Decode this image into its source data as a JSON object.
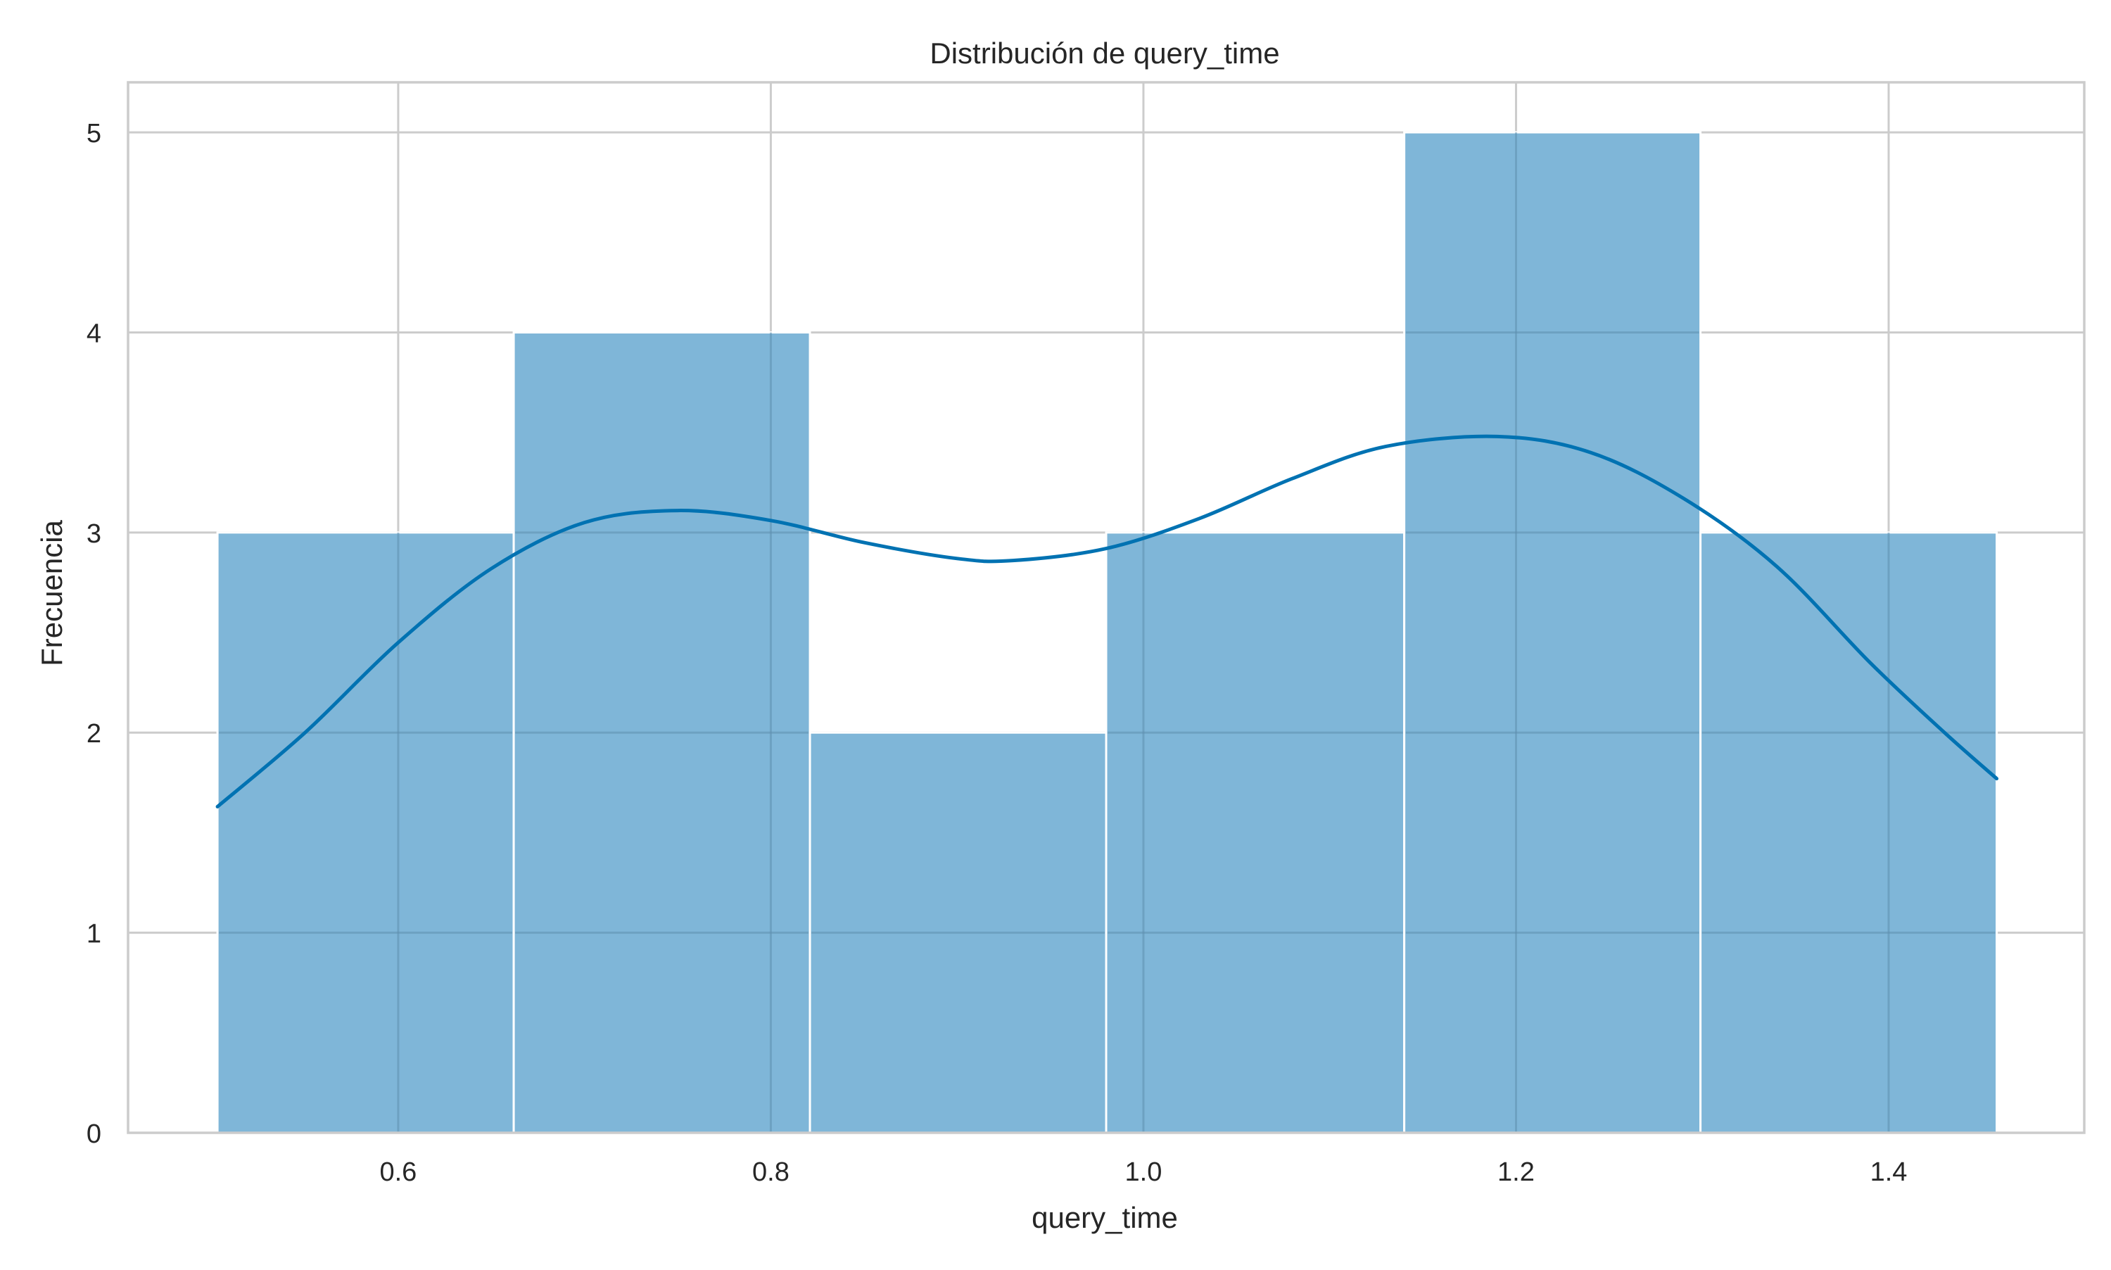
{
  "chart_data": {
    "type": "bar",
    "subtype": "histogram_with_kde",
    "title": "Distribución de query_time",
    "xlabel": "query_time",
    "ylabel": "Frecuencia",
    "xlim": [
      0.455,
      1.505
    ],
    "ylim": [
      0,
      5.25
    ],
    "x_ticks": [
      0.6,
      0.8,
      1.0,
      1.2,
      1.4
    ],
    "x_tick_labels": [
      "0.6",
      "0.8",
      "1.0",
      "1.2",
      "1.4"
    ],
    "y_ticks": [
      0,
      1,
      2,
      3,
      4,
      5
    ],
    "y_tick_labels": [
      "0",
      "1",
      "2",
      "3",
      "4",
      "5"
    ],
    "grid": true,
    "bins": [
      {
        "start": 0.503,
        "end": 0.662,
        "count": 3
      },
      {
        "start": 0.662,
        "end": 0.821,
        "count": 4
      },
      {
        "start": 0.821,
        "end": 0.98,
        "count": 2
      },
      {
        "start": 0.98,
        "end": 1.14,
        "count": 3
      },
      {
        "start": 1.14,
        "end": 1.299,
        "count": 5
      },
      {
        "start": 1.299,
        "end": 1.458,
        "count": 3
      }
    ],
    "kde": {
      "x": [
        0.503,
        0.55,
        0.6,
        0.65,
        0.7,
        0.75,
        0.8,
        0.85,
        0.9,
        0.93,
        0.98,
        1.03,
        1.08,
        1.13,
        1.19,
        1.24,
        1.29,
        1.34,
        1.39,
        1.43,
        1.458
      ],
      "y": [
        1.63,
        2.0,
        2.45,
        2.82,
        3.05,
        3.11,
        3.06,
        2.95,
        2.87,
        2.86,
        2.92,
        3.07,
        3.27,
        3.43,
        3.48,
        3.4,
        3.17,
        2.83,
        2.35,
        2.0,
        1.77
      ]
    },
    "bar_color": "#7fb6d8",
    "bar_edge_color": "#ffffff",
    "line_color": "#0072b2",
    "grid_color": "#cccccc",
    "axis_color": "#cccccc"
  }
}
